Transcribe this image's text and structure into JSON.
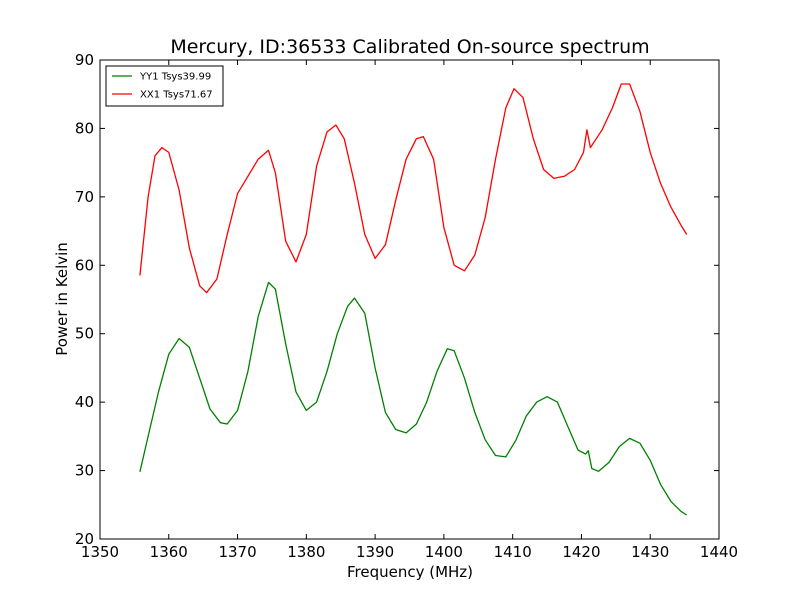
{
  "chart_data": {
    "type": "line",
    "title": "Mercury, ID:36533 Calibrated On-source spectrum",
    "xlabel": "Frequency (MHz)",
    "ylabel": "Power in Kelvin",
    "xlim": [
      1350,
      1440
    ],
    "ylim": [
      20,
      90
    ],
    "xticks": [
      1350,
      1360,
      1370,
      1380,
      1390,
      1400,
      1410,
      1420,
      1430,
      1440
    ],
    "yticks": [
      20,
      30,
      40,
      50,
      60,
      70,
      80,
      90
    ],
    "grid": false,
    "legend_position": "top-left",
    "series": [
      {
        "name": "YY1 Tsys39.99",
        "color": "#008000",
        "x": [
          1355.8,
          1357,
          1358.5,
          1360,
          1361.5,
          1363,
          1364.5,
          1366,
          1367.5,
          1368.5,
          1370,
          1371.5,
          1373,
          1374.5,
          1375.5,
          1377,
          1378.5,
          1380,
          1381.5,
          1383,
          1384.5,
          1386,
          1387,
          1388.5,
          1390,
          1391.5,
          1393,
          1394.5,
          1396,
          1397.5,
          1399,
          1400.5,
          1401.5,
          1403,
          1404.5,
          1406,
          1407.5,
          1409,
          1410.5,
          1412,
          1413.5,
          1415,
          1416.5,
          1418,
          1419.5,
          1420.6,
          1421,
          1421.5,
          1422.5,
          1424,
          1425.5,
          1427,
          1428.5,
          1430,
          1431.5,
          1433,
          1434.5,
          1435.3
        ],
        "y": [
          29.8,
          35.0,
          41.5,
          47.0,
          49.3,
          48.0,
          43.5,
          39.0,
          37.0,
          36.8,
          38.8,
          44.5,
          52.5,
          57.5,
          56.5,
          48.5,
          41.5,
          38.8,
          40.0,
          44.5,
          50.0,
          54.0,
          55.2,
          53.0,
          45.0,
          38.5,
          36.0,
          35.5,
          36.8,
          40.0,
          44.5,
          47.8,
          47.5,
          43.5,
          38.5,
          34.5,
          32.2,
          32.0,
          34.5,
          38.0,
          40.0,
          40.8,
          40.0,
          36.5,
          33.0,
          32.4,
          32.9,
          30.3,
          29.9,
          31.2,
          33.5,
          34.7,
          34.0,
          31.5,
          28.0,
          25.5,
          24.0,
          23.5
        ]
      },
      {
        "name": "XX1 Tsys71.67",
        "color": "#ff0000",
        "x": [
          1355.8,
          1357,
          1358,
          1359,
          1360,
          1361.5,
          1363,
          1364.5,
          1365.5,
          1367,
          1368.5,
          1370,
          1371.5,
          1373,
          1374.5,
          1375.5,
          1377,
          1378.5,
          1380,
          1381.5,
          1383,
          1384.3,
          1385.5,
          1387,
          1388.5,
          1390,
          1391.5,
          1393,
          1394.5,
          1396,
          1397,
          1398.5,
          1400,
          1401.5,
          1403,
          1404.5,
          1406,
          1407.5,
          1409,
          1410.2,
          1411.5,
          1413,
          1414.5,
          1416,
          1417.5,
          1419,
          1420.3,
          1420.8,
          1421.3,
          1423,
          1424.5,
          1425.8,
          1427,
          1428.5,
          1430,
          1431.5,
          1433,
          1434.5,
          1435.3
        ],
        "y": [
          58.5,
          70.0,
          76.0,
          77.2,
          76.5,
          71.0,
          62.5,
          57.0,
          56.0,
          58.0,
          64.5,
          70.5,
          73.0,
          75.5,
          76.8,
          73.5,
          63.5,
          60.5,
          64.5,
          74.5,
          79.5,
          80.5,
          78.5,
          72.0,
          64.5,
          61.0,
          63.0,
          69.5,
          75.5,
          78.5,
          78.8,
          75.5,
          65.5,
          60.0,
          59.2,
          61.5,
          67.0,
          75.5,
          83.0,
          85.8,
          84.5,
          78.5,
          74.0,
          72.7,
          73.0,
          74.0,
          76.5,
          79.8,
          77.2,
          79.8,
          83.0,
          86.5,
          86.5,
          82.5,
          76.5,
          72.0,
          68.5,
          65.8,
          64.5
        ]
      }
    ]
  }
}
